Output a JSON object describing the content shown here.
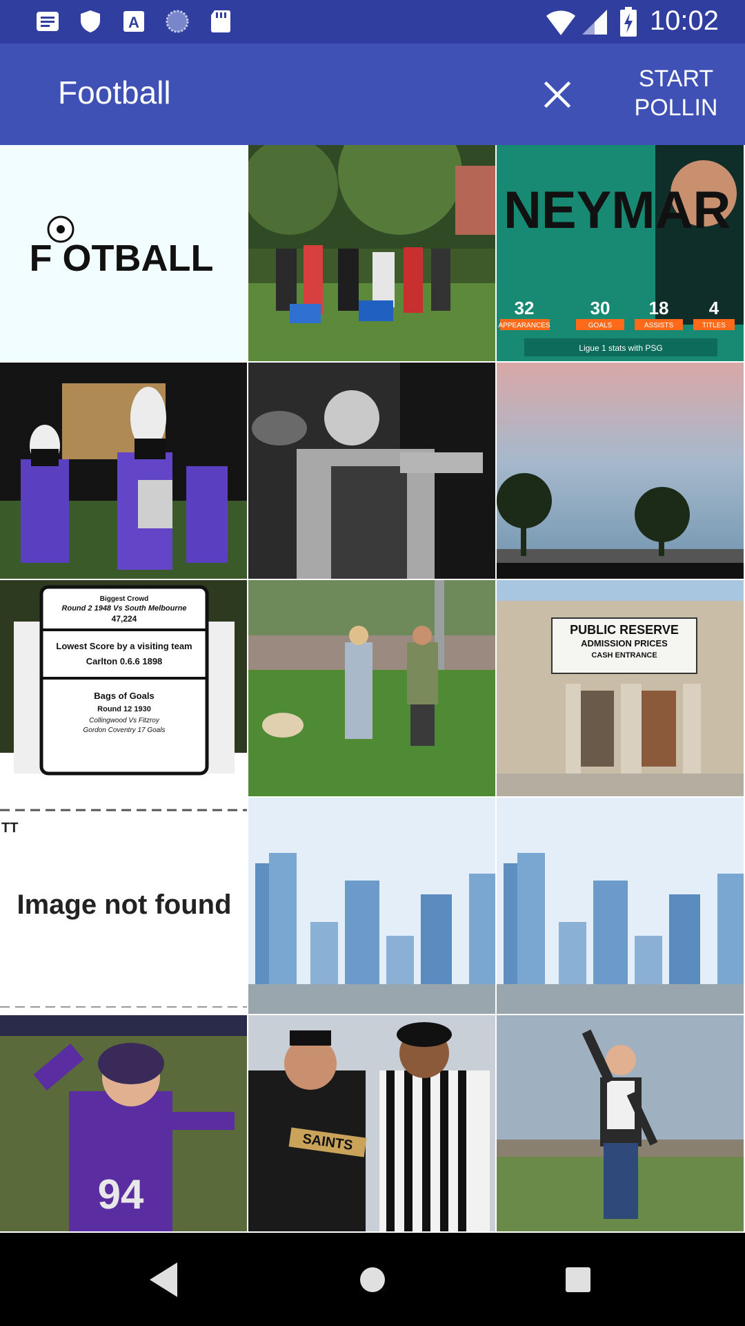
{
  "status_bar": {
    "time": "10:02",
    "icons": [
      "notes-icon",
      "shield-icon",
      "font-icon",
      "sync-icon",
      "sd-card-icon",
      "wifi-icon",
      "signal-icon",
      "battery-charging-icon"
    ]
  },
  "app_bar": {
    "title": "Football",
    "close_icon": "close-icon",
    "start_label": "START\nPOLLIN"
  },
  "tiles": {
    "t1": {
      "logo_text": "F OTBALL"
    },
    "t3": {
      "headline": "NEYMAR",
      "stats": [
        {
          "value": "32",
          "label": "APPEARANCES"
        },
        {
          "value": "30",
          "label": "GOALS"
        },
        {
          "value": "18",
          "label": "ASSISTS"
        },
        {
          "value": "4",
          "label": "TITLES"
        }
      ],
      "caption": "Ligue 1 stats with PSG"
    },
    "t7": {
      "lines": [
        "Biggest Crowd",
        "Round 2 1948 Vs South Melbourne",
        "47,224",
        "Lowest Score by a visiting team",
        "Carlton 0.6.6 1898",
        "Bags of Goals",
        "Round 12 1930",
        "Collingwood Vs Fitzroy",
        "Gordon Coventry 17 Goals"
      ]
    },
    "t9": {
      "sign_title": "PUBLIC RESERVE",
      "sign_sub1": "ADMISSION PRICES",
      "sign_sub2": "CASH ENTRANCE"
    },
    "t10": {
      "message": "Image not found",
      "corner": "TT"
    },
    "t13": {
      "jersey_number": "94"
    },
    "t14": {
      "shirt_text": "SAINTS"
    }
  },
  "colors": {
    "status_bar": "#303f9f",
    "app_bar": "#3f51b5"
  },
  "nav_bar": {
    "buttons": [
      "back-icon",
      "home-icon",
      "recents-icon"
    ]
  }
}
